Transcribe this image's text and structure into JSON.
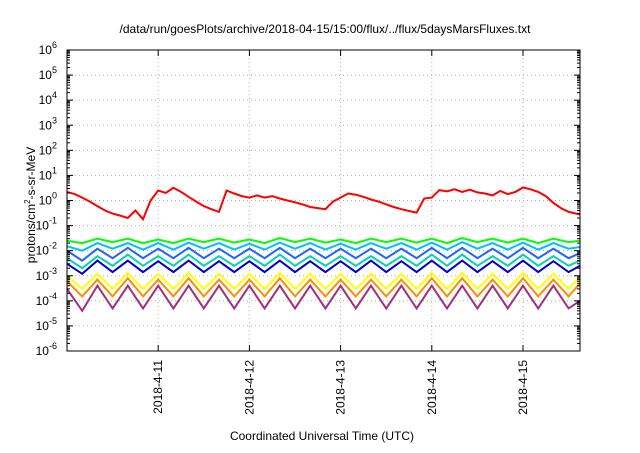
{
  "chart_data": {
    "type": "line",
    "title": "/data/run/goesPlots/archive/2018-04-15/15:00/flux/../flux/5daysMarsFluxes.txt",
    "xlabel": "Coordinated Universal Time (UTC)",
    "ylabel": "protons/cm²-s-sr-MeV",
    "ylabel_base": "protons/cm",
    "ylabel_sup": "2",
    "ylabel_rest": "-s-sr-MeV",
    "y_scale": "log",
    "ylim": [
      1e-06,
      1000000.0
    ],
    "xlim": [
      "2018-04-10T00:00",
      "2018-04-15T15:00"
    ],
    "x_ticks": [
      {
        "label": "2018-4-11",
        "value": "2018-04-11T00:00"
      },
      {
        "label": "2018-4-12",
        "value": "2018-04-12T00:00"
      },
      {
        "label": "2018-4-13",
        "value": "2018-04-13T00:00"
      },
      {
        "label": "2018-4-14",
        "value": "2018-04-14T00:00"
      },
      {
        "label": "2018-4-15",
        "value": "2018-04-15T00:00"
      }
    ],
    "y_ticks": [
      {
        "base": "10",
        "exp": "-6",
        "value": 1e-06
      },
      {
        "base": "10",
        "exp": "-5",
        "value": 1e-05
      },
      {
        "base": "10",
        "exp": "-4",
        "value": 0.0001
      },
      {
        "base": "10",
        "exp": "-3",
        "value": 0.001
      },
      {
        "base": "10",
        "exp": "-2",
        "value": 0.01
      },
      {
        "base": "10",
        "exp": "-1",
        "value": 0.1
      },
      {
        "base": "10",
        "exp": "0",
        "value": 1
      },
      {
        "base": "10",
        "exp": "1",
        "value": 10
      },
      {
        "base": "10",
        "exp": "2",
        "value": 100
      },
      {
        "base": "10",
        "exp": "3",
        "value": 1000
      },
      {
        "base": "10",
        "exp": "4",
        "value": 10000
      },
      {
        "base": "10",
        "exp": "5",
        "value": 100000
      },
      {
        "base": "10",
        "exp": "6",
        "value": 1000000
      }
    ],
    "grid": true,
    "series": [
      {
        "color": "#ff0000",
        "x": [
          "2018-04-10T00:00",
          "2018-04-10T02:00",
          "2018-04-10T04:00",
          "2018-04-10T06:00",
          "2018-04-10T08:00",
          "2018-04-10T10:00",
          "2018-04-10T12:00",
          "2018-04-10T14:00",
          "2018-04-10T16:00",
          "2018-04-10T18:00",
          "2018-04-10T20:00",
          "2018-04-10T22:00",
          "2018-04-11T00:00",
          "2018-04-11T02:00",
          "2018-04-11T04:00",
          "2018-04-11T06:00",
          "2018-04-11T08:00",
          "2018-04-11T10:00",
          "2018-04-11T12:00",
          "2018-04-11T14:00",
          "2018-04-11T16:00",
          "2018-04-11T18:00",
          "2018-04-11T20:00",
          "2018-04-11T22:00",
          "2018-04-12T00:00",
          "2018-04-12T02:00",
          "2018-04-12T04:00",
          "2018-04-12T06:00",
          "2018-04-12T08:00",
          "2018-04-12T10:00",
          "2018-04-12T12:00",
          "2018-04-12T14:00",
          "2018-04-12T16:00",
          "2018-04-12T18:00",
          "2018-04-12T20:00",
          "2018-04-12T22:00",
          "2018-04-13T00:00",
          "2018-04-13T02:00",
          "2018-04-13T04:00",
          "2018-04-13T06:00",
          "2018-04-13T08:00",
          "2018-04-13T10:00",
          "2018-04-13T12:00",
          "2018-04-13T14:00",
          "2018-04-13T16:00",
          "2018-04-13T18:00",
          "2018-04-13T20:00",
          "2018-04-13T22:00",
          "2018-04-14T00:00",
          "2018-04-14T02:00",
          "2018-04-14T04:00",
          "2018-04-14T06:00",
          "2018-04-14T08:00",
          "2018-04-14T10:00",
          "2018-04-14T12:00",
          "2018-04-14T14:00",
          "2018-04-14T16:00",
          "2018-04-14T18:00",
          "2018-04-14T20:00",
          "2018-04-14T22:00",
          "2018-04-15T00:00",
          "2018-04-15T02:00",
          "2018-04-15T04:00",
          "2018-04-15T06:00",
          "2018-04-15T08:00",
          "2018-04-15T10:00",
          "2018-04-15T12:00",
          "2018-04-15T14:00",
          "2018-04-15T15:00"
        ],
        "y": [
          2.2,
          1.8,
          1.3,
          0.9,
          0.6,
          0.4,
          0.3,
          0.25,
          0.2,
          0.4,
          0.18,
          1.0,
          2.5,
          2.0,
          3.2,
          2.2,
          1.4,
          0.9,
          0.6,
          0.45,
          0.35,
          2.5,
          1.9,
          1.5,
          1.3,
          1.6,
          1.3,
          1.5,
          1.2,
          1.0,
          0.85,
          0.7,
          0.55,
          0.5,
          0.45,
          0.9,
          1.3,
          1.9,
          1.7,
          1.4,
          1.1,
          0.9,
          0.7,
          0.55,
          0.45,
          0.38,
          0.33,
          1.2,
          1.3,
          2.6,
          2.3,
          2.8,
          2.2,
          2.7,
          2.1,
          1.9,
          1.6,
          2.4,
          1.8,
          2.2,
          3.3,
          2.8,
          2.2,
          1.5,
          0.8,
          0.5,
          0.35,
          0.3,
          0.28
        ]
      },
      {
        "color": "#00ff00",
        "x": [
          "2018-04-10T00:00",
          "2018-04-10T04:00",
          "2018-04-10T08:00",
          "2018-04-10T12:00",
          "2018-04-10T16:00",
          "2018-04-10T20:00",
          "2018-04-11T00:00",
          "2018-04-11T04:00",
          "2018-04-11T08:00",
          "2018-04-11T12:00",
          "2018-04-11T16:00",
          "2018-04-11T20:00",
          "2018-04-12T00:00",
          "2018-04-12T04:00",
          "2018-04-12T08:00",
          "2018-04-12T12:00",
          "2018-04-12T16:00",
          "2018-04-12T20:00",
          "2018-04-13T00:00",
          "2018-04-13T04:00",
          "2018-04-13T08:00",
          "2018-04-13T12:00",
          "2018-04-13T16:00",
          "2018-04-13T20:00",
          "2018-04-14T00:00",
          "2018-04-14T04:00",
          "2018-04-14T08:00",
          "2018-04-14T12:00",
          "2018-04-14T16:00",
          "2018-04-14T20:00",
          "2018-04-15T00:00",
          "2018-04-15T04:00",
          "2018-04-15T08:00",
          "2018-04-15T12:00",
          "2018-04-15T15:00"
        ],
        "y": [
          0.025,
          0.02,
          0.03,
          0.022,
          0.03,
          0.02,
          0.028,
          0.02,
          0.03,
          0.022,
          0.03,
          0.021,
          0.028,
          0.02,
          0.032,
          0.022,
          0.03,
          0.021,
          0.028,
          0.02,
          0.03,
          0.022,
          0.03,
          0.021,
          0.03,
          0.02,
          0.032,
          0.022,
          0.03,
          0.021,
          0.03,
          0.02,
          0.03,
          0.022,
          0.025
        ]
      },
      {
        "color": "#00bfff",
        "x": [
          "2018-04-10T00:00",
          "2018-04-10T04:00",
          "2018-04-10T08:00",
          "2018-04-10T12:00",
          "2018-04-10T16:00",
          "2018-04-10T20:00",
          "2018-04-11T00:00",
          "2018-04-11T04:00",
          "2018-04-11T08:00",
          "2018-04-11T12:00",
          "2018-04-11T16:00",
          "2018-04-11T20:00",
          "2018-04-12T00:00",
          "2018-04-12T04:00",
          "2018-04-12T08:00",
          "2018-04-12T12:00",
          "2018-04-12T16:00",
          "2018-04-12T20:00",
          "2018-04-13T00:00",
          "2018-04-13T04:00",
          "2018-04-13T08:00",
          "2018-04-13T12:00",
          "2018-04-13T16:00",
          "2018-04-13T20:00",
          "2018-04-14T00:00",
          "2018-04-14T04:00",
          "2018-04-14T08:00",
          "2018-04-14T12:00",
          "2018-04-14T16:00",
          "2018-04-14T20:00",
          "2018-04-15T00:00",
          "2018-04-15T04:00",
          "2018-04-15T08:00",
          "2018-04-15T12:00",
          "2018-04-15T15:00"
        ],
        "y": [
          0.015,
          0.01,
          0.02,
          0.012,
          0.02,
          0.011,
          0.02,
          0.011,
          0.021,
          0.012,
          0.02,
          0.011,
          0.019,
          0.011,
          0.021,
          0.012,
          0.02,
          0.011,
          0.019,
          0.011,
          0.02,
          0.012,
          0.02,
          0.011,
          0.021,
          0.011,
          0.022,
          0.012,
          0.02,
          0.011,
          0.021,
          0.011,
          0.02,
          0.012,
          0.014
        ]
      },
      {
        "color": "#1e63ff",
        "x": [
          "2018-04-10T00:00",
          "2018-04-10T04:00",
          "2018-04-10T08:00",
          "2018-04-10T12:00",
          "2018-04-10T16:00",
          "2018-04-10T20:00",
          "2018-04-11T00:00",
          "2018-04-11T04:00",
          "2018-04-11T08:00",
          "2018-04-11T12:00",
          "2018-04-11T16:00",
          "2018-04-11T20:00",
          "2018-04-12T00:00",
          "2018-04-12T04:00",
          "2018-04-12T08:00",
          "2018-04-12T12:00",
          "2018-04-12T16:00",
          "2018-04-12T20:00",
          "2018-04-13T00:00",
          "2018-04-13T04:00",
          "2018-04-13T08:00",
          "2018-04-13T12:00",
          "2018-04-13T16:00",
          "2018-04-13T20:00",
          "2018-04-14T00:00",
          "2018-04-14T04:00",
          "2018-04-14T08:00",
          "2018-04-14T12:00",
          "2018-04-14T16:00",
          "2018-04-14T20:00",
          "2018-04-15T00:00",
          "2018-04-15T04:00",
          "2018-04-15T08:00",
          "2018-04-15T12:00",
          "2018-04-15T15:00"
        ],
        "y": [
          0.01,
          0.004,
          0.012,
          0.005,
          0.013,
          0.005,
          0.012,
          0.005,
          0.013,
          0.005,
          0.012,
          0.005,
          0.012,
          0.005,
          0.013,
          0.005,
          0.012,
          0.005,
          0.012,
          0.005,
          0.012,
          0.005,
          0.012,
          0.005,
          0.013,
          0.005,
          0.013,
          0.005,
          0.012,
          0.005,
          0.013,
          0.005,
          0.012,
          0.005,
          0.008
        ]
      },
      {
        "color": "#00d3b4",
        "x": [
          "2018-04-10T00:00",
          "2018-04-10T04:00",
          "2018-04-10T08:00",
          "2018-04-10T12:00",
          "2018-04-10T16:00",
          "2018-04-10T20:00",
          "2018-04-11T00:00",
          "2018-04-11T04:00",
          "2018-04-11T08:00",
          "2018-04-11T12:00",
          "2018-04-11T16:00",
          "2018-04-11T20:00",
          "2018-04-12T00:00",
          "2018-04-12T04:00",
          "2018-04-12T08:00",
          "2018-04-12T12:00",
          "2018-04-12T16:00",
          "2018-04-12T20:00",
          "2018-04-13T00:00",
          "2018-04-13T04:00",
          "2018-04-13T08:00",
          "2018-04-13T12:00",
          "2018-04-13T16:00",
          "2018-04-13T20:00",
          "2018-04-14T00:00",
          "2018-04-14T04:00",
          "2018-04-14T08:00",
          "2018-04-14T12:00",
          "2018-04-14T16:00",
          "2018-04-14T20:00",
          "2018-04-15T00:00",
          "2018-04-15T04:00",
          "2018-04-15T08:00",
          "2018-04-15T12:00",
          "2018-04-15T15:00"
        ],
        "y": [
          0.005,
          0.002,
          0.006,
          0.0025,
          0.007,
          0.0025,
          0.006,
          0.0025,
          0.007,
          0.0025,
          0.006,
          0.0025,
          0.006,
          0.0025,
          0.007,
          0.0025,
          0.006,
          0.0025,
          0.006,
          0.0025,
          0.006,
          0.0025,
          0.006,
          0.0025,
          0.007,
          0.0025,
          0.007,
          0.0025,
          0.006,
          0.0025,
          0.007,
          0.0025,
          0.006,
          0.0025,
          0.004
        ]
      },
      {
        "color": "#0000cd",
        "x": [
          "2018-04-10T00:00",
          "2018-04-10T04:00",
          "2018-04-10T08:00",
          "2018-04-10T12:00",
          "2018-04-10T16:00",
          "2018-04-10T20:00",
          "2018-04-11T00:00",
          "2018-04-11T04:00",
          "2018-04-11T08:00",
          "2018-04-11T12:00",
          "2018-04-11T16:00",
          "2018-04-11T20:00",
          "2018-04-12T00:00",
          "2018-04-12T04:00",
          "2018-04-12T08:00",
          "2018-04-12T12:00",
          "2018-04-12T16:00",
          "2018-04-12T20:00",
          "2018-04-13T00:00",
          "2018-04-13T04:00",
          "2018-04-13T08:00",
          "2018-04-13T12:00",
          "2018-04-13T16:00",
          "2018-04-13T20:00",
          "2018-04-14T00:00",
          "2018-04-14T04:00",
          "2018-04-14T08:00",
          "2018-04-14T12:00",
          "2018-04-14T16:00",
          "2018-04-14T20:00",
          "2018-04-15T00:00",
          "2018-04-15T04:00",
          "2018-04-15T08:00",
          "2018-04-15T12:00",
          "2018-04-15T15:00"
        ],
        "y": [
          0.003,
          0.0012,
          0.004,
          0.0014,
          0.004,
          0.0014,
          0.0038,
          0.0014,
          0.004,
          0.0014,
          0.0038,
          0.0014,
          0.0038,
          0.0014,
          0.004,
          0.0014,
          0.0038,
          0.0014,
          0.0038,
          0.0014,
          0.004,
          0.0014,
          0.0038,
          0.0014,
          0.004,
          0.0014,
          0.004,
          0.0014,
          0.0038,
          0.0014,
          0.004,
          0.0014,
          0.0038,
          0.0014,
          0.0025
        ]
      },
      {
        "color": "#ffff00",
        "x": [
          "2018-04-10T00:00",
          "2018-04-10T04:00",
          "2018-04-10T08:00",
          "2018-04-10T12:00",
          "2018-04-10T16:00",
          "2018-04-10T20:00",
          "2018-04-11T00:00",
          "2018-04-11T04:00",
          "2018-04-11T08:00",
          "2018-04-11T12:00",
          "2018-04-11T16:00",
          "2018-04-11T20:00",
          "2018-04-12T00:00",
          "2018-04-12T04:00",
          "2018-04-12T08:00",
          "2018-04-12T12:00",
          "2018-04-12T16:00",
          "2018-04-12T20:00",
          "2018-04-13T00:00",
          "2018-04-13T04:00",
          "2018-04-13T08:00",
          "2018-04-13T12:00",
          "2018-04-13T16:00",
          "2018-04-13T20:00",
          "2018-04-14T00:00",
          "2018-04-14T04:00",
          "2018-04-14T08:00",
          "2018-04-14T12:00",
          "2018-04-14T16:00",
          "2018-04-14T20:00",
          "2018-04-15T00:00",
          "2018-04-15T04:00",
          "2018-04-15T08:00",
          "2018-04-15T12:00",
          "2018-04-15T15:00"
        ],
        "y": [
          0.001,
          0.0003,
          0.0012,
          0.0003,
          0.0013,
          0.0003,
          0.0012,
          0.0003,
          0.0013,
          0.0003,
          0.0012,
          0.0003,
          0.0012,
          0.0003,
          0.0013,
          0.0003,
          0.0012,
          0.0003,
          0.0012,
          0.0003,
          0.0012,
          0.0003,
          0.0012,
          0.0003,
          0.0013,
          0.0003,
          0.0013,
          0.0003,
          0.0012,
          0.0003,
          0.0013,
          0.0003,
          0.0012,
          0.0003,
          0.0009
        ]
      },
      {
        "color": "#ff8c00",
        "x": [
          "2018-04-10T00:00",
          "2018-04-10T04:00",
          "2018-04-10T08:00",
          "2018-04-10T12:00",
          "2018-04-10T16:00",
          "2018-04-10T20:00",
          "2018-04-11T00:00",
          "2018-04-11T04:00",
          "2018-04-11T08:00",
          "2018-04-11T12:00",
          "2018-04-11T16:00",
          "2018-04-11T20:00",
          "2018-04-12T00:00",
          "2018-04-12T04:00",
          "2018-04-12T08:00",
          "2018-04-12T12:00",
          "2018-04-12T16:00",
          "2018-04-12T20:00",
          "2018-04-13T00:00",
          "2018-04-13T04:00",
          "2018-04-13T08:00",
          "2018-04-13T12:00",
          "2018-04-13T16:00",
          "2018-04-13T20:00",
          "2018-04-14T00:00",
          "2018-04-14T04:00",
          "2018-04-14T08:00",
          "2018-04-14T12:00",
          "2018-04-14T16:00",
          "2018-04-14T20:00",
          "2018-04-15T00:00",
          "2018-04-15T04:00",
          "2018-04-15T08:00",
          "2018-04-15T12:00",
          "2018-04-15T15:00"
        ],
        "y": [
          0.0006,
          0.00015,
          0.0007,
          0.00015,
          0.0008,
          0.00015,
          0.0007,
          0.00015,
          0.0008,
          0.00015,
          0.0007,
          0.00015,
          0.0007,
          0.00015,
          0.0008,
          0.00015,
          0.0007,
          0.00015,
          0.0007,
          0.00015,
          0.0007,
          0.00015,
          0.0007,
          0.00015,
          0.0008,
          0.00015,
          0.0008,
          0.00015,
          0.0007,
          0.00015,
          0.0008,
          0.00015,
          0.0007,
          0.00015,
          0.0005
        ]
      },
      {
        "color": "#a0307a",
        "x": [
          "2018-04-10T00:00",
          "2018-04-10T04:00",
          "2018-04-10T08:00",
          "2018-04-10T12:00",
          "2018-04-10T16:00",
          "2018-04-10T20:00",
          "2018-04-11T00:00",
          "2018-04-11T04:00",
          "2018-04-11T08:00",
          "2018-04-11T12:00",
          "2018-04-11T16:00",
          "2018-04-11T20:00",
          "2018-04-12T00:00",
          "2018-04-12T04:00",
          "2018-04-12T08:00",
          "2018-04-12T12:00",
          "2018-04-12T16:00",
          "2018-04-12T20:00",
          "2018-04-13T00:00",
          "2018-04-13T04:00",
          "2018-04-13T08:00",
          "2018-04-13T12:00",
          "2018-04-13T16:00",
          "2018-04-13T20:00",
          "2018-04-14T00:00",
          "2018-04-14T04:00",
          "2018-04-14T08:00",
          "2018-04-14T12:00",
          "2018-04-14T16:00",
          "2018-04-14T20:00",
          "2018-04-15T00:00",
          "2018-04-15T04:00",
          "2018-04-15T08:00",
          "2018-04-15T12:00",
          "2018-04-15T15:00"
        ],
        "y": [
          0.0003,
          4e-05,
          0.0004,
          5e-05,
          0.0004,
          5e-05,
          0.0004,
          5e-05,
          0.0004,
          5e-05,
          0.0004,
          5e-05,
          0.0004,
          5e-05,
          0.0004,
          5e-05,
          0.0004,
          5e-05,
          0.0004,
          5e-05,
          0.0004,
          5e-05,
          0.0004,
          5e-05,
          0.0004,
          5e-05,
          0.0004,
          5e-05,
          0.0004,
          5e-05,
          0.0004,
          5e-05,
          0.0004,
          5e-05,
          0.0001
        ]
      }
    ]
  }
}
